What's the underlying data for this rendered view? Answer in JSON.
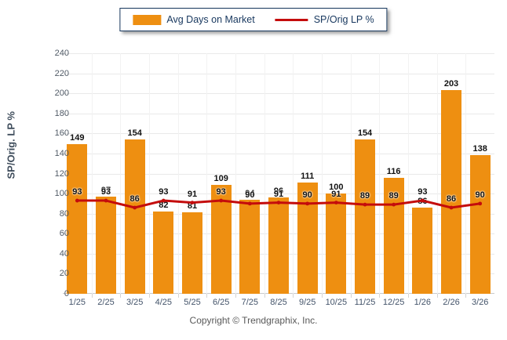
{
  "colors": {
    "bar": "#EE8F11",
    "line": "#C40C0C",
    "legend_border": "#17375E",
    "grid": "#E9E9E9",
    "label": "#111111"
  },
  "footer": {
    "text": "Copyright © Trendgraphix, Inc."
  },
  "chart_data": {
    "type": "bar",
    "subtype": "bar+line combo",
    "title": "",
    "xlabel": "",
    "ylabel": "SP/Orig. LP %",
    "ylim": [
      0,
      240
    ],
    "ytick_step": 20,
    "grid": true,
    "legend_position": "top",
    "categories": [
      "1/25",
      "2/25",
      "3/25",
      "4/25",
      "5/25",
      "6/25",
      "7/25",
      "8/25",
      "9/25",
      "10/25",
      "11/25",
      "12/25",
      "1/26",
      "2/26",
      "3/26"
    ],
    "series": [
      {
        "name": "Avg Days on Market",
        "type": "bar",
        "values": [
          149,
          97,
          154,
          82,
          81,
          109,
          94,
          96,
          111,
          100,
          154,
          116,
          86,
          203,
          138
        ]
      },
      {
        "name": "SP/Orig LP %",
        "type": "line",
        "values": [
          93,
          93,
          86,
          93,
          91,
          93,
          90,
          91,
          90,
          91,
          89,
          89,
          93,
          86,
          90
        ]
      }
    ]
  }
}
